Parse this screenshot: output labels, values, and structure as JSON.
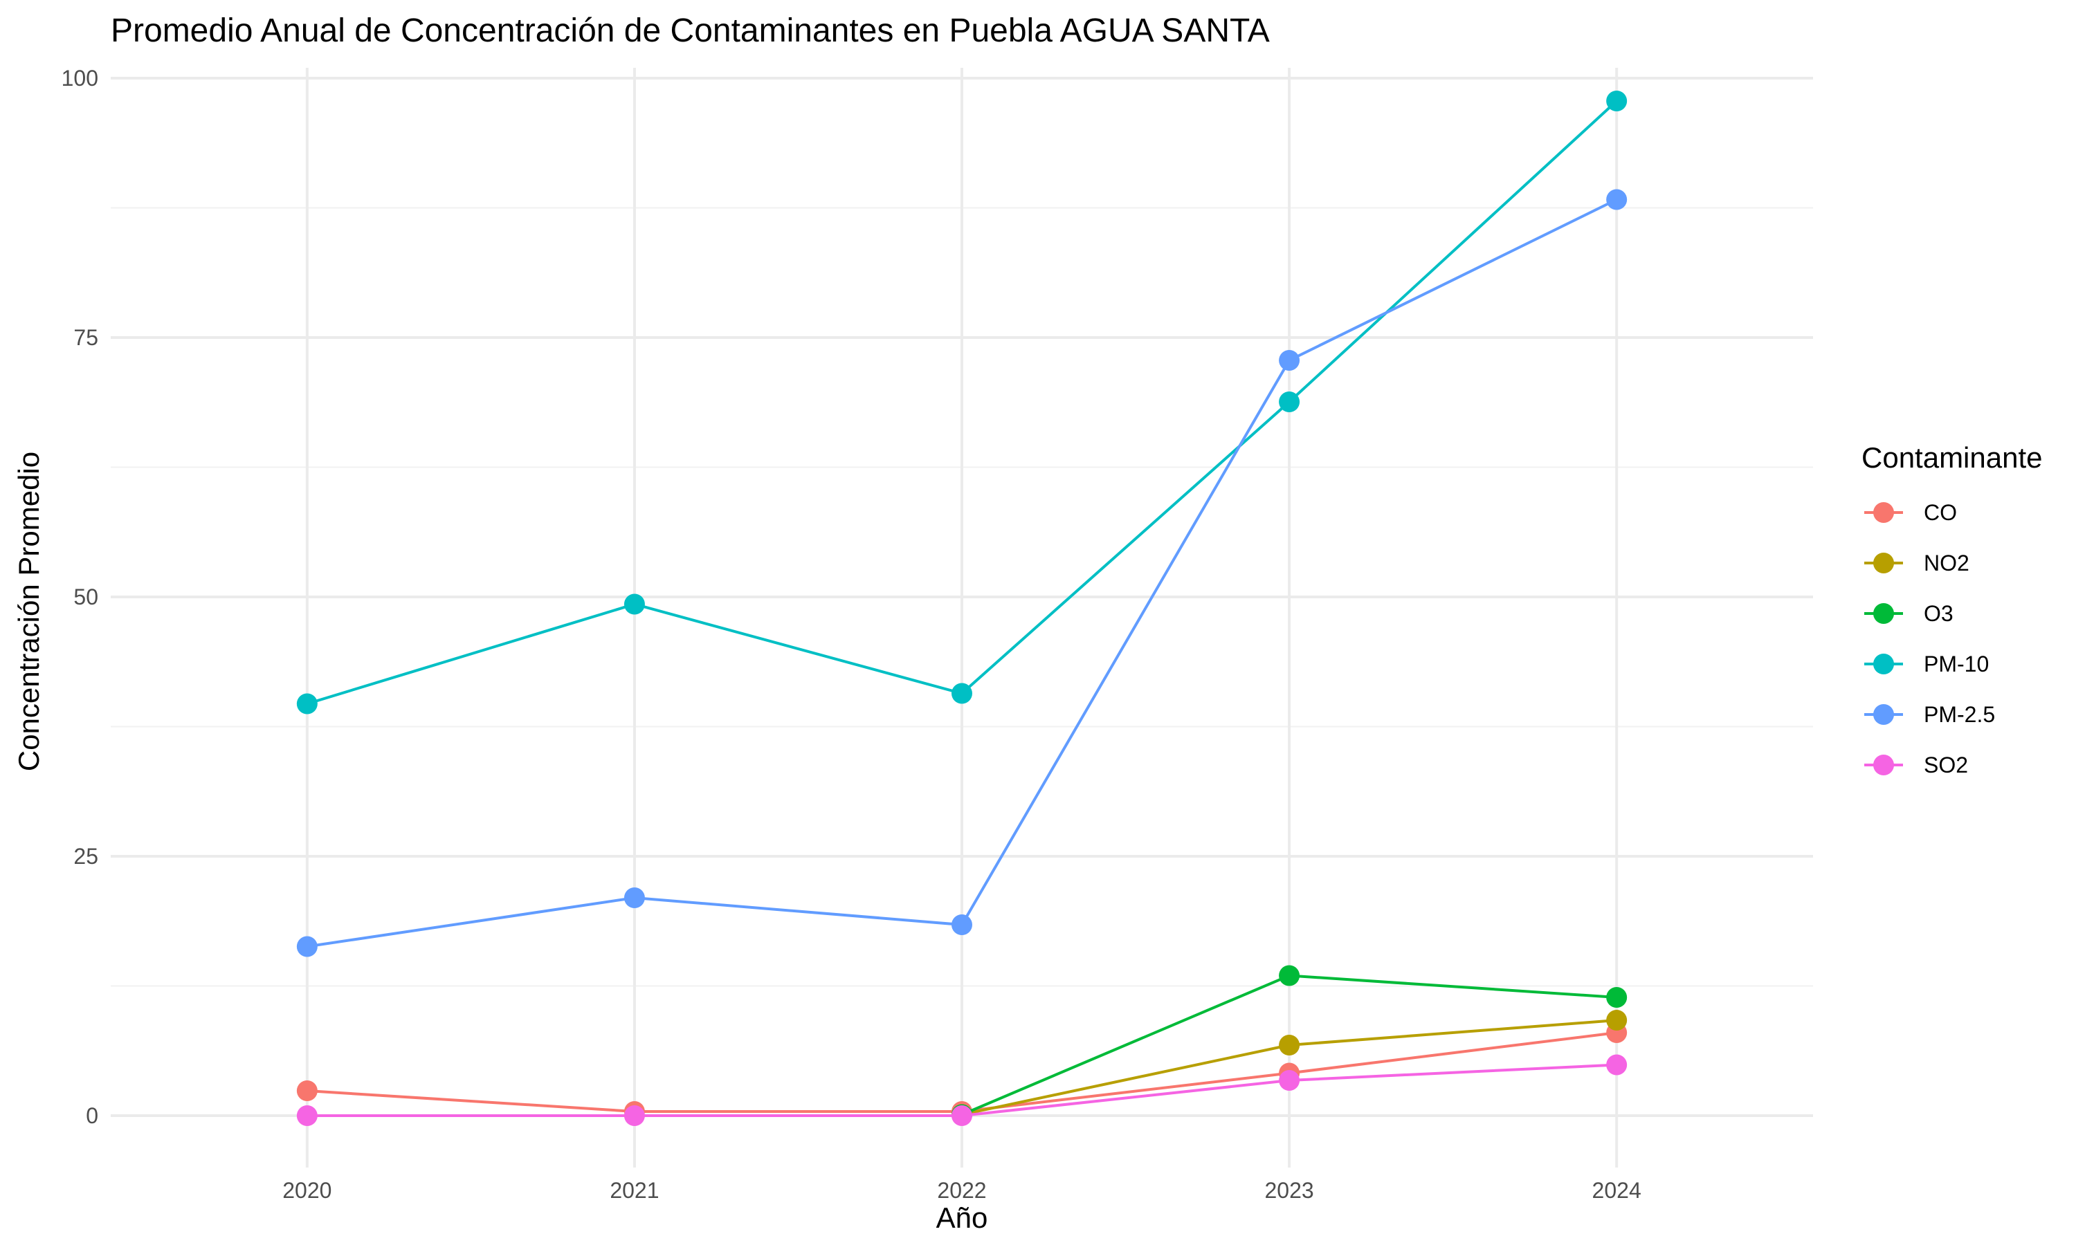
{
  "chart_data": {
    "type": "line",
    "title": "Promedio Anual de Concentración de Contaminantes en Puebla AGUA SANTA",
    "xlabel": "Año",
    "ylabel": "Concentración Promedio",
    "x": [
      2020,
      2021,
      2022,
      2023,
      2024
    ],
    "x_tick_labels": [
      "2020",
      "2021",
      "2022",
      "2023",
      "2024"
    ],
    "xlim": [
      2019.4,
      2024.6
    ],
    "ylim": [
      -5,
      101
    ],
    "y_ticks": [
      0,
      25,
      50,
      75,
      100
    ],
    "y_tick_labels": [
      "0",
      "25",
      "50",
      "75",
      "100"
    ],
    "grid": true,
    "legend": {
      "title": "Contaminante",
      "position": "right"
    },
    "series": [
      {
        "name": "CO",
        "color": "#F8766D",
        "values": [
          2.4,
          0.4,
          0.4,
          4.1,
          8.0
        ]
      },
      {
        "name": "NO2",
        "color": "#B79F00",
        "values": [
          null,
          null,
          0.1,
          6.8,
          9.2
        ]
      },
      {
        "name": "O3",
        "color": "#00BA38",
        "values": [
          null,
          null,
          0.1,
          13.5,
          11.4
        ]
      },
      {
        "name": "PM-10",
        "color": "#00BFC4",
        "values": [
          39.7,
          49.3,
          40.7,
          68.8,
          97.8
        ]
      },
      {
        "name": "PM-2.5",
        "color": "#619CFF",
        "values": [
          16.3,
          21.0,
          18.4,
          72.8,
          88.3
        ]
      },
      {
        "name": "SO2",
        "color": "#F564E3",
        "values": [
          0.0,
          0.0,
          0.0,
          3.4,
          4.9
        ]
      }
    ]
  }
}
